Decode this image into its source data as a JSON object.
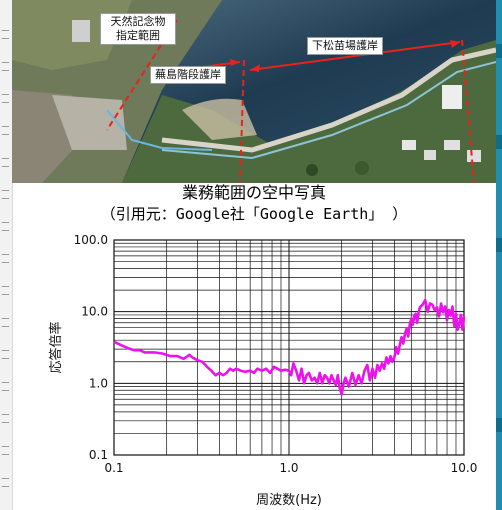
{
  "photo": {
    "labels": {
      "natural_monument": "天然記念物\n指定範囲",
      "kabushima_steps": "蕪島階段護岸",
      "shimomatsu": "下松苗場護岸"
    }
  },
  "captions": {
    "title": "業務範囲の空中写真",
    "source": "（引用元：Google社「Google Earth」 ）"
  },
  "colors": {
    "curve": "#ee11ee",
    "grid": "#111111",
    "frame": "#1d8fb3",
    "annotation_red": "#e8231c"
  },
  "chart_data": {
    "type": "line",
    "xscale": "log",
    "yscale": "log",
    "xlim": [
      0.1,
      10.0
    ],
    "ylim": [
      0.1,
      100.0
    ],
    "xlabel": "周波数(Hz)",
    "ylabel": "応答倍率",
    "xticks": [
      "0.1",
      "1.0",
      "10.0"
    ],
    "yticks": [
      "0.1",
      "1.0",
      "10.0",
      "100.0"
    ],
    "grid": true,
    "series": [
      {
        "x": [
          0.1,
          0.11,
          0.12,
          0.13,
          0.14,
          0.15,
          0.17,
          0.19,
          0.21,
          0.23,
          0.25,
          0.27,
          0.28,
          0.3,
          0.32,
          0.34,
          0.36,
          0.38,
          0.4,
          0.42,
          0.44,
          0.46,
          0.48,
          0.5,
          0.53,
          0.56,
          0.6,
          0.63,
          0.66,
          0.7,
          0.74,
          0.78,
          0.82,
          0.86,
          0.9,
          0.95,
          1.0,
          1.03,
          1.06,
          1.1,
          1.14,
          1.18,
          1.22,
          1.26,
          1.3,
          1.35,
          1.4,
          1.45,
          1.5,
          1.55,
          1.6,
          1.65,
          1.7,
          1.75,
          1.8,
          1.85,
          1.9,
          1.95,
          2.0,
          2.05,
          2.1,
          2.2,
          2.3,
          2.4,
          2.5,
          2.6,
          2.7,
          2.8,
          2.9,
          3.0,
          3.1,
          3.2,
          3.3,
          3.4,
          3.5,
          3.6,
          3.7,
          3.8,
          3.9,
          4.0,
          4.1,
          4.2,
          4.3,
          4.4,
          4.5,
          4.6,
          4.7,
          4.8,
          4.9,
          5.0,
          5.1,
          5.2,
          5.3,
          5.4,
          5.5,
          5.6,
          5.8,
          6.0,
          6.2,
          6.4,
          6.6,
          6.8,
          7.0,
          7.2,
          7.4,
          7.6,
          7.8,
          8.0,
          8.2,
          8.4,
          8.6,
          8.8,
          9.0,
          9.2,
          9.4,
          9.6,
          9.8,
          10.0
        ],
        "y": [
          3.8,
          3.4,
          3.1,
          2.9,
          2.9,
          2.7,
          2.7,
          2.6,
          2.4,
          2.4,
          2.2,
          2.5,
          2.3,
          2.1,
          2.0,
          1.7,
          1.5,
          1.3,
          1.4,
          1.3,
          1.4,
          1.6,
          1.5,
          1.6,
          1.5,
          1.45,
          1.5,
          1.4,
          1.6,
          1.5,
          1.6,
          1.4,
          1.7,
          1.6,
          1.5,
          1.55,
          1.5,
          1.3,
          1.9,
          1.5,
          1.1,
          1.6,
          1.0,
          1.3,
          1.4,
          1.1,
          1.2,
          1.0,
          1.4,
          1.0,
          1.3,
          1.2,
          1.0,
          1.3,
          1.1,
          0.95,
          1.3,
          0.85,
          0.7,
          1.0,
          1.2,
          0.9,
          1.4,
          0.95,
          1.3,
          1.0,
          1.5,
          1.8,
          1.1,
          1.6,
          1.2,
          1.8,
          1.5,
          1.9,
          1.6,
          2.3,
          1.9,
          2.4,
          2.0,
          2.3,
          3.2,
          2.6,
          3.5,
          4.4,
          3.6,
          4.9,
          5.8,
          4.5,
          6.6,
          8.0,
          6.6,
          8.8,
          9.3,
          7.0,
          9.8,
          11.5,
          12.5,
          14.5,
          10.0,
          13.0,
          12.5,
          10.5,
          11.5,
          8.6,
          13.0,
          9.8,
          11.8,
          7.6,
          10.6,
          8.8,
          11.8,
          6.3,
          9.3,
          5.6,
          6.8,
          9.0,
          5.6,
          8.5
        ]
      }
    ]
  }
}
